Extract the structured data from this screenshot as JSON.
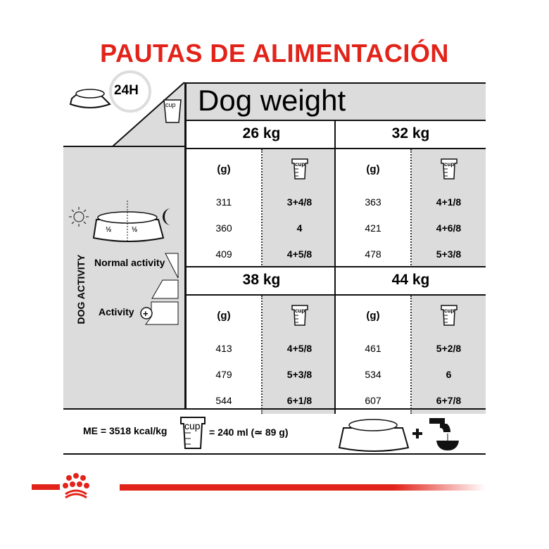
{
  "title": "PAUTAS DE ALIMENTACIÓN",
  "header": {
    "period": "24H",
    "dog_weight": "Dog weight",
    "cup_label": "cup"
  },
  "activity": {
    "axis_label": "DOG ACTIVITY",
    "normal": "Normal activity",
    "high": "Activity",
    "split": [
      "½",
      "½"
    ]
  },
  "blocks": [
    {
      "weight": "26 kg",
      "unit": "(g)",
      "rows": [
        [
          "311",
          "3+4/8"
        ],
        [
          "360",
          "4"
        ],
        [
          "409",
          "4+5/8"
        ]
      ]
    },
    {
      "weight": "32 kg",
      "unit": "(g)",
      "rows": [
        [
          "363",
          "4+1/8"
        ],
        [
          "421",
          "4+6/8"
        ],
        [
          "478",
          "5+3/8"
        ]
      ]
    },
    {
      "weight": "38 kg",
      "unit": "(g)",
      "rows": [
        [
          "413",
          "4+5/8"
        ],
        [
          "479",
          "5+3/8"
        ],
        [
          "544",
          "6+1/8"
        ]
      ]
    },
    {
      "weight": "44 kg",
      "unit": "(g)",
      "rows": [
        [
          "461",
          "5+2/8"
        ],
        [
          "534",
          "6"
        ],
        [
          "607",
          "6+7/8"
        ]
      ]
    }
  ],
  "footer": {
    "energy": "ME = 3518 kcal/kg",
    "cup_equiv": "= 240 ml (≃ 89 g)",
    "plus": "+"
  },
  "colors": {
    "brand_red": "#e2231a",
    "panel_gray": "#dcdcdd"
  }
}
